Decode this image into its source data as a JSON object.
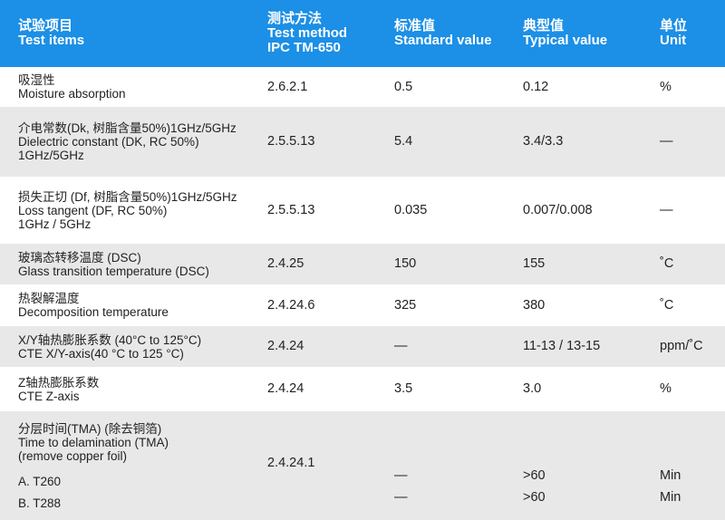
{
  "header": {
    "items_cn": "试验项目",
    "items_en": "Test items",
    "method_cn": "测试方法",
    "method_en1": "Test method",
    "method_en2": "IPC TM-650",
    "standard_cn": "标准值",
    "standard_en": "Standard value",
    "typical_cn": "典型值",
    "typical_en": "Typical value",
    "unit_cn": "单位",
    "unit_en": "Unit"
  },
  "rows": [
    {
      "cn": "吸湿性",
      "en": "Moisture absorption",
      "en2": "",
      "method": "2.6.2.1",
      "standard": "0.5",
      "typical": "0.12",
      "unit": "%"
    },
    {
      "cn": "介电常数(Dk, 树脂含量50%)1GHz/5GHz",
      "en": "Dielectric constant (DK, RC 50%)",
      "en2": "1GHz/5GHz",
      "method": "2.5.5.13",
      "standard": "5.4",
      "typical": "3.4/3.3",
      "unit": "—"
    },
    {
      "cn": "损失正切 (Df, 树脂含量50%)1GHz/5GHz",
      "en": "Loss tangent (DF, RC 50%)",
      "en2": "1GHz / 5GHz",
      "method": "2.5.5.13",
      "standard": "0.035",
      "typical": "0.007/0.008",
      "unit": "—"
    },
    {
      "cn": "玻璃态转移温度 (DSC)",
      "en": "Glass transition temperature (DSC)",
      "en2": "",
      "method": "2.4.25",
      "standard": "150",
      "typical": "155",
      "unit": "˚C"
    },
    {
      "cn": "热裂解温度",
      "en": "Decomposition temperature",
      "en2": "",
      "method": "2.4.24.6",
      "standard": "325",
      "typical": "380",
      "unit": "˚C"
    },
    {
      "cn": "X/Y轴热膨胀系数 (40°C to 125°C)",
      "en": "CTE X/Y-axis(40 °C to 125 °C)",
      "en2": "",
      "method": "2.4.24",
      "standard": "—",
      "typical": "11-13 / 13-15",
      "unit": "ppm/˚C"
    },
    {
      "cn": "Z轴热膨胀系数",
      "en": "CTE Z-axis",
      "en2": "",
      "method": "2.4.24",
      "standard": "3.5",
      "typical": "3.0",
      "unit": "%"
    }
  ],
  "tma": {
    "cn": "分层时间(TMA) (除去铜箔)",
    "en": "Time to delamination (TMA)",
    "en2": "(remove copper foil)",
    "sub_a": "A. T260",
    "sub_b": "B. T288",
    "method": "2.4.24.1",
    "standard_a": "—",
    "standard_b": "—",
    "typical_a": ">60",
    "typical_b": ">60",
    "unit_a": "Min",
    "unit_b": "Min"
  }
}
